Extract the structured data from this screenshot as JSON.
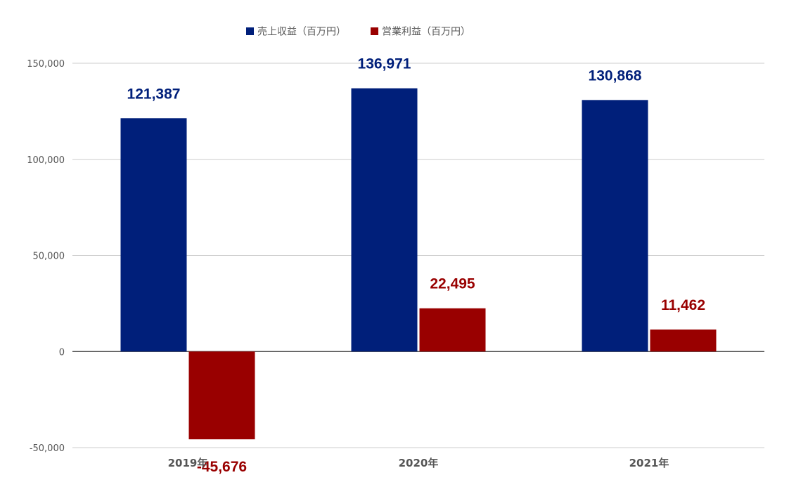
{
  "chart_data": {
    "type": "bar",
    "categories": [
      "2019年",
      "2020年",
      "2021年"
    ],
    "series": [
      {
        "name": "売上収益（百万円）",
        "values": [
          121387,
          136971,
          130868
        ],
        "color": "#001f7a"
      },
      {
        "name": "営業利益（百万円）",
        "values": [
          -45676,
          22495,
          11462
        ],
        "color": "#990000"
      }
    ],
    "data_labels": [
      [
        "121,387",
        "136,971",
        "130,868"
      ],
      [
        "-45,676",
        "22,495",
        "11,462"
      ]
    ],
    "y_ticks": [
      {
        "value": 150000,
        "label": "150,000"
      },
      {
        "value": 100000,
        "label": "100,000"
      },
      {
        "value": 50000,
        "label": "50,000"
      },
      {
        "value": 0,
        "label": "0"
      },
      {
        "value": -50000,
        "label": "-50,000"
      }
    ],
    "ylim": [
      -50000,
      150000
    ],
    "grid": true,
    "legend_position": "top",
    "title": "",
    "xlabel": "",
    "ylabel": ""
  }
}
